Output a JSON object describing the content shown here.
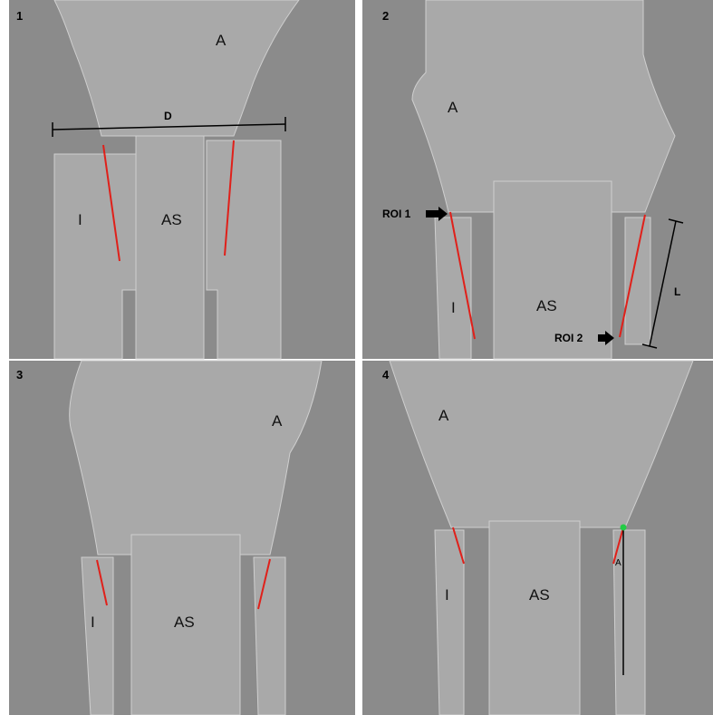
{
  "panels": [
    {
      "number": "1",
      "labels": [
        "A",
        "D",
        "I",
        "AS"
      ]
    },
    {
      "number": "2",
      "labels": [
        "A",
        "ROI 1",
        "I",
        "AS",
        "ROI 2",
        "L"
      ]
    },
    {
      "number": "3",
      "labels": [
        "A",
        "I",
        "AS"
      ]
    },
    {
      "number": "4",
      "labels": [
        "A",
        "I",
        "AS",
        "A"
      ]
    }
  ]
}
